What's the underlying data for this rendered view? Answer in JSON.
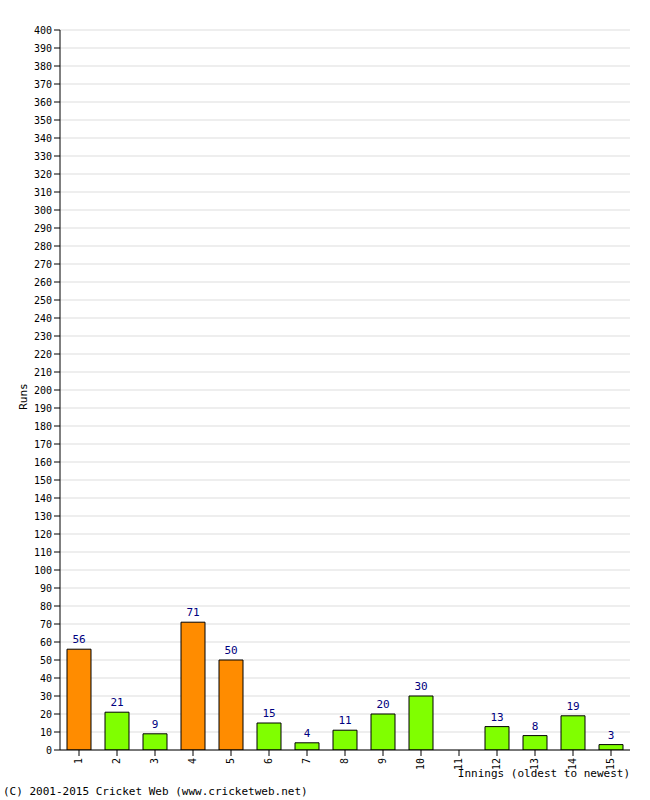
{
  "chart_data": {
    "type": "bar",
    "categories": [
      "1",
      "2",
      "3",
      "4",
      "5",
      "6",
      "7",
      "8",
      "9",
      "10",
      "11",
      "12",
      "13",
      "14",
      "15"
    ],
    "values": [
      56,
      21,
      9,
      71,
      50,
      15,
      4,
      11,
      20,
      30,
      0,
      13,
      8,
      19,
      3
    ],
    "colors": [
      "#ff8c00",
      "#80ff00",
      "#80ff00",
      "#ff8c00",
      "#ff8c00",
      "#80ff00",
      "#80ff00",
      "#80ff00",
      "#80ff00",
      "#80ff00",
      "#80ff00",
      "#80ff00",
      "#80ff00",
      "#80ff00",
      "#80ff00"
    ],
    "y_label": "Runs",
    "x_label": "Innings (oldest to newest)",
    "annotations": [
      "(C) 2001-2015 Cricket Web (www.cricketweb.net)"
    ],
    "ylim": [
      0,
      400
    ],
    "yticks": [
      0,
      10,
      20,
      30,
      40,
      50,
      60,
      70,
      80,
      90,
      100,
      110,
      120,
      130,
      140,
      150,
      160,
      170,
      180,
      190,
      200,
      210,
      220,
      230,
      240,
      250,
      260,
      270,
      280,
      290,
      300,
      310,
      320,
      330,
      340,
      350,
      360,
      370,
      380,
      390,
      400
    ],
    "grid": true,
    "data_labels": true
  }
}
